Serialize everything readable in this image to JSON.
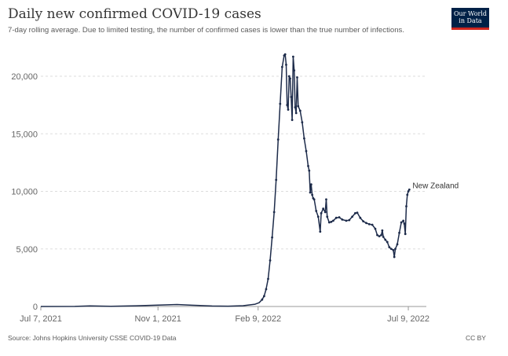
{
  "header": {
    "title": "Daily new confirmed COVID-19 cases",
    "subtitle": "7-day rolling average. Due to limited testing, the number of confirmed cases is lower than the true number of infections.",
    "logo_line1": "Our World",
    "logo_line2": "in Data"
  },
  "footer": {
    "source": "Source: Johns Hopkins University CSSE COVID-19 Data",
    "license": "CC BY"
  },
  "colors": {
    "line": "#1d2b4a",
    "grid": "#dddddd",
    "axis": "#999999",
    "logo_bg": "#002147",
    "logo_accent": "#ce261e"
  },
  "chart_data": {
    "type": "line",
    "title": "Daily new confirmed COVID-19 cases",
    "xlabel": "",
    "ylabel": "",
    "x_type": "date",
    "xlim": [
      "2021-07-07",
      "2022-07-27"
    ],
    "ylim": [
      0,
      20000
    ],
    "y_ticks": [
      0,
      5000,
      10000,
      15000,
      20000
    ],
    "y_tick_labels": [
      "0",
      "5,000",
      "10,000",
      "15,000",
      "20,000"
    ],
    "x_ticks": [
      "2021-07-07",
      "2021-11-01",
      "2022-02-09",
      "2022-07-09"
    ],
    "x_tick_labels": [
      "Jul 7, 2021",
      "Nov 1, 2021",
      "Feb 9, 2022",
      "Jul 9, 2022"
    ],
    "grid": true,
    "markers": true,
    "legend": "end-of-line label",
    "series": [
      {
        "name": "New Zealand",
        "points": [
          [
            "2021-07-07",
            2
          ],
          [
            "2021-08-10",
            5
          ],
          [
            "2021-08-25",
            50
          ],
          [
            "2021-09-15",
            20
          ],
          [
            "2021-10-10",
            60
          ],
          [
            "2021-11-01",
            120
          ],
          [
            "2021-11-20",
            170
          ],
          [
            "2021-12-05",
            110
          ],
          [
            "2021-12-25",
            40
          ],
          [
            "2022-01-10",
            30
          ],
          [
            "2022-01-25",
            70
          ],
          [
            "2022-02-02",
            150
          ],
          [
            "2022-02-06",
            200
          ],
          [
            "2022-02-10",
            330
          ],
          [
            "2022-02-13",
            600
          ],
          [
            "2022-02-15",
            900
          ],
          [
            "2022-02-17",
            1500
          ],
          [
            "2022-02-19",
            2400
          ],
          [
            "2022-02-21",
            4000
          ],
          [
            "2022-02-23",
            6000
          ],
          [
            "2022-02-25",
            8200
          ],
          [
            "2022-02-27",
            11000
          ],
          [
            "2022-03-01",
            14500
          ],
          [
            "2022-03-03",
            17600
          ],
          [
            "2022-03-05",
            20800
          ],
          [
            "2022-03-07",
            21800
          ],
          [
            "2022-03-08",
            21900
          ],
          [
            "2022-03-09",
            21000
          ],
          [
            "2022-03-10",
            17500
          ],
          [
            "2022-03-11",
            17100
          ],
          [
            "2022-03-12",
            20000
          ],
          [
            "2022-03-13",
            19800
          ],
          [
            "2022-03-14",
            18200
          ],
          [
            "2022-03-15",
            16200
          ],
          [
            "2022-03-16",
            21700
          ],
          [
            "2022-03-17",
            20500
          ],
          [
            "2022-03-18",
            17300
          ],
          [
            "2022-03-19",
            16800
          ],
          [
            "2022-03-20",
            19900
          ],
          [
            "2022-03-21",
            17400
          ],
          [
            "2022-03-23",
            17000
          ],
          [
            "2022-03-25",
            16000
          ],
          [
            "2022-03-27",
            14600
          ],
          [
            "2022-03-29",
            13500
          ],
          [
            "2022-03-31",
            12200
          ],
          [
            "2022-04-01",
            11800
          ],
          [
            "2022-04-02",
            9900
          ],
          [
            "2022-04-03",
            10600
          ],
          [
            "2022-04-04",
            9700
          ],
          [
            "2022-04-05",
            9400
          ],
          [
            "2022-04-06",
            9300
          ],
          [
            "2022-04-08",
            8300
          ],
          [
            "2022-04-10",
            7800
          ],
          [
            "2022-04-12",
            6500
          ],
          [
            "2022-04-13",
            8100
          ],
          [
            "2022-04-15",
            8500
          ],
          [
            "2022-04-17",
            8200
          ],
          [
            "2022-04-18",
            9300
          ],
          [
            "2022-04-19",
            7800
          ],
          [
            "2022-04-21",
            7300
          ],
          [
            "2022-04-23",
            7350
          ],
          [
            "2022-04-25",
            7450
          ],
          [
            "2022-04-28",
            7700
          ],
          [
            "2022-05-01",
            7750
          ],
          [
            "2022-05-04",
            7550
          ],
          [
            "2022-05-08",
            7450
          ],
          [
            "2022-05-11",
            7500
          ],
          [
            "2022-05-14",
            7800
          ],
          [
            "2022-05-17",
            8100
          ],
          [
            "2022-05-19",
            8150
          ],
          [
            "2022-05-22",
            7700
          ],
          [
            "2022-05-25",
            7400
          ],
          [
            "2022-05-28",
            7250
          ],
          [
            "2022-05-31",
            7150
          ],
          [
            "2022-06-03",
            7100
          ],
          [
            "2022-06-06",
            6750
          ],
          [
            "2022-06-08",
            6200
          ],
          [
            "2022-06-10",
            6100
          ],
          [
            "2022-06-12",
            6200
          ],
          [
            "2022-06-13",
            6600
          ],
          [
            "2022-06-14",
            6050
          ],
          [
            "2022-06-16",
            5800
          ],
          [
            "2022-06-18",
            5600
          ],
          [
            "2022-06-20",
            5150
          ],
          [
            "2022-06-22",
            5000
          ],
          [
            "2022-06-24",
            4900
          ],
          [
            "2022-06-25",
            4300
          ],
          [
            "2022-06-26",
            5000
          ],
          [
            "2022-06-28",
            5400
          ],
          [
            "2022-06-30",
            6400
          ],
          [
            "2022-07-02",
            7300
          ],
          [
            "2022-07-04",
            7450
          ],
          [
            "2022-07-05",
            7200
          ],
          [
            "2022-07-06",
            6300
          ],
          [
            "2022-07-07",
            8700
          ],
          [
            "2022-07-08",
            9700
          ],
          [
            "2022-07-09",
            10000
          ],
          [
            "2022-07-10",
            10150
          ]
        ]
      }
    ]
  }
}
